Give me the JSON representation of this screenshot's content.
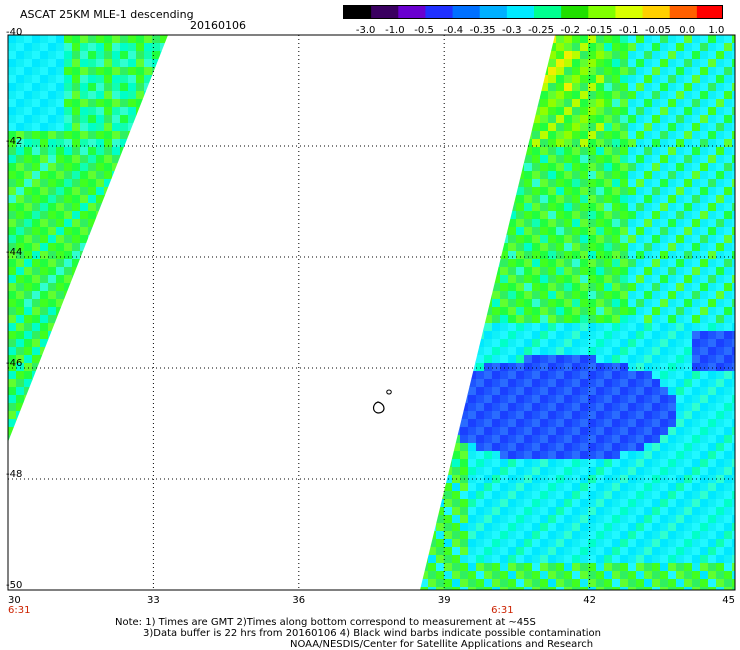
{
  "title": "ASCAT 25KM MLE-1 descending",
  "date": "20160106",
  "colorbar": {
    "ticks": [
      "-3.0",
      "-1.0",
      "-0.5",
      "-0.4",
      "-0.35",
      "-0.3",
      "-0.25",
      "-0.2",
      "-0.15",
      "-0.1",
      "-0.05",
      "0.0",
      "1.0"
    ],
    "colors": [
      "#000000",
      "#3a0060",
      "#6a00d0",
      "#2030ff",
      "#0070ff",
      "#00b0ff",
      "#00eaff",
      "#00ff90",
      "#20e000",
      "#80ff00",
      "#d8ff00",
      "#ffd000",
      "#ff6000",
      "#ff0000"
    ]
  },
  "chart_data": {
    "type": "heatmap",
    "title": "ASCAT 25KM MLE-1 descending 20160106",
    "xlabel": "",
    "ylabel": "",
    "xlim": [
      30,
      45
    ],
    "ylim": [
      -50,
      -40
    ],
    "x_ticks": [
      "30",
      "33",
      "36",
      "39",
      "42",
      "45"
    ],
    "y_ticks": [
      "-40",
      "-42",
      "-44",
      "-46",
      "-48",
      "-50"
    ],
    "time_labels": [
      {
        "x": 30,
        "text": "6:31"
      },
      {
        "x": 40.2,
        "text": "6:31"
      }
    ],
    "grid": true,
    "value_scale": [
      "-3.0",
      "-1.0",
      "-0.5",
      "-0.4",
      "-0.35",
      "-0.3",
      "-0.25",
      "-0.2",
      "-0.15",
      "-0.1",
      "-0.05",
      "0.0",
      "1.0"
    ],
    "swaths": [
      {
        "name": "left",
        "region": "west swath, approx -40 to -47.5 lat",
        "dominant_range": [
          "-0.3",
          "-0.2"
        ]
      },
      {
        "name": "right",
        "region": "east swath, approx -40 to -50 lat",
        "dominant_range": [
          "-0.4",
          "-0.15"
        ]
      }
    ]
  },
  "notes": [
    "Note: 1) Times are GMT 2)Times along bottom correspond to measurement at ~45S",
    "3)Data buffer is 22 hrs from 20160106 4) Black wind barbs indicate possible contamination",
    "NOAA/NESDIS/Center for Satellite Applications and Research"
  ]
}
